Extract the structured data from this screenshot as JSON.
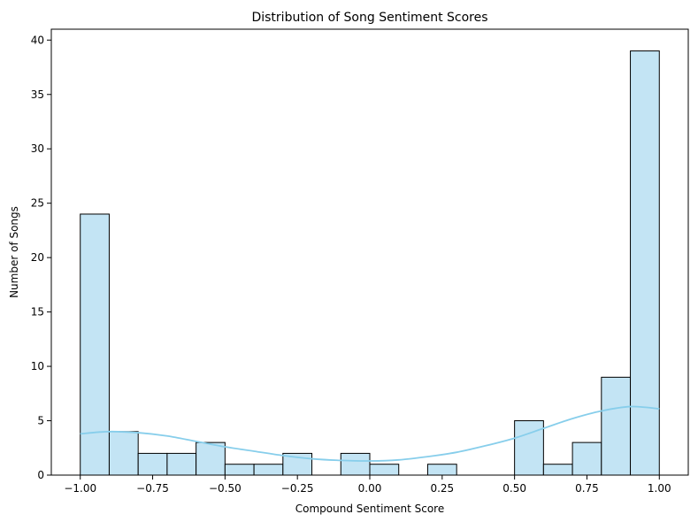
{
  "chart_data": {
    "type": "bar",
    "title": "Distribution of Song Sentiment Scores",
    "xlabel": "Compound Sentiment Score",
    "ylabel": "Number of Songs",
    "xlim": [
      -1.1,
      1.1
    ],
    "ylim": [
      0,
      41
    ],
    "bin_width": 0.1,
    "bins": [
      {
        "start": -1.0,
        "count": 24
      },
      {
        "start": -0.9,
        "count": 4
      },
      {
        "start": -0.8,
        "count": 2
      },
      {
        "start": -0.7,
        "count": 2
      },
      {
        "start": -0.6,
        "count": 3
      },
      {
        "start": -0.5,
        "count": 1
      },
      {
        "start": -0.4,
        "count": 1
      },
      {
        "start": -0.3,
        "count": 2
      },
      {
        "start": -0.2,
        "count": 0
      },
      {
        "start": -0.1,
        "count": 2
      },
      {
        "start": 0.0,
        "count": 1
      },
      {
        "start": 0.1,
        "count": 0
      },
      {
        "start": 0.2,
        "count": 1
      },
      {
        "start": 0.3,
        "count": 0
      },
      {
        "start": 0.4,
        "count": 0
      },
      {
        "start": 0.5,
        "count": 5
      },
      {
        "start": 0.6,
        "count": 1
      },
      {
        "start": 0.7,
        "count": 3
      },
      {
        "start": 0.8,
        "count": 9
      },
      {
        "start": 0.9,
        "count": 39
      }
    ],
    "kde": {
      "x": [
        -1.0,
        -0.9,
        -0.8,
        -0.7,
        -0.6,
        -0.5,
        -0.4,
        -0.3,
        -0.2,
        -0.1,
        0.0,
        0.1,
        0.2,
        0.3,
        0.4,
        0.5,
        0.6,
        0.7,
        0.8,
        0.9,
        1.0
      ],
      "y": [
        3.8,
        4.0,
        3.9,
        3.6,
        3.1,
        2.6,
        2.2,
        1.8,
        1.5,
        1.35,
        1.3,
        1.4,
        1.7,
        2.1,
        2.7,
        3.4,
        4.3,
        5.2,
        5.9,
        6.3,
        6.1
      ]
    },
    "xticks": [
      -1.0,
      -0.75,
      -0.5,
      -0.25,
      0.0,
      0.25,
      0.5,
      0.75,
      1.0
    ],
    "xtick_labels": [
      "−1.00",
      "−0.75",
      "−0.50",
      "−0.25",
      "0.00",
      "0.25",
      "0.50",
      "0.75",
      "1.00"
    ],
    "yticks": [
      0,
      5,
      10,
      15,
      20,
      25,
      30,
      35,
      40
    ],
    "ytick_labels": [
      "0",
      "5",
      "10",
      "15",
      "20",
      "25",
      "30",
      "35",
      "40"
    ],
    "grid": false,
    "colors": {
      "bar_fill": "#c3e4f4",
      "bar_edge": "#000000",
      "kde_line": "#87ceeb"
    }
  }
}
